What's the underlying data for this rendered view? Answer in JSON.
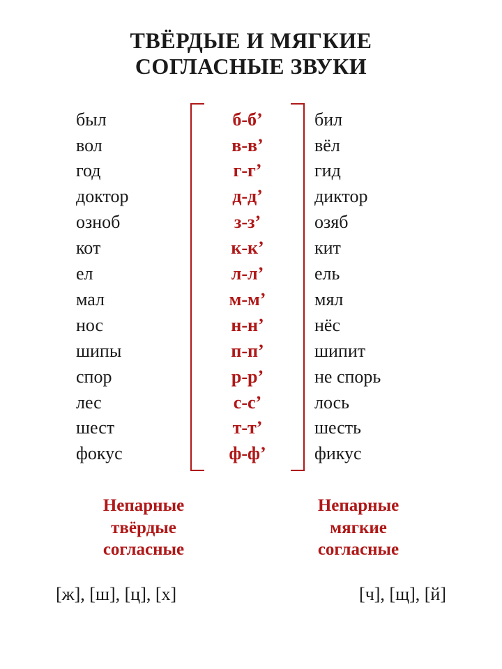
{
  "colors": {
    "accent": "#b01818",
    "text": "#1a1a1a",
    "bracket": "#b01818",
    "background": "#ffffff"
  },
  "title": {
    "line1": "ТВЁРДЫЕ И МЯГКИЕ",
    "line2": "СОГЛАСНЫЕ ЗВУКИ"
  },
  "rows": [
    {
      "left": "был",
      "mid": "б-б’",
      "right": "бил"
    },
    {
      "left": "вол",
      "mid": "в-в’",
      "right": "вёл"
    },
    {
      "left": "год",
      "mid": "г-г’",
      "right": "гид"
    },
    {
      "left": "доктор",
      "mid": "д-д’",
      "right": "диктор"
    },
    {
      "left": "озноб",
      "mid": "з-з’",
      "right": "озяб"
    },
    {
      "left": "кот",
      "mid": "к-к’",
      "right": "кит"
    },
    {
      "left": "ел",
      "mid": "л-л’",
      "right": "ель"
    },
    {
      "left": "мал",
      "mid": "м-м’",
      "right": "мял"
    },
    {
      "left": "нос",
      "mid": "н-н’",
      "right": "нёс"
    },
    {
      "left": "шипы",
      "mid": "п-п’",
      "right": "шипит"
    },
    {
      "left": "спор",
      "mid": "р-р’",
      "right": "не спорь"
    },
    {
      "left": "лес",
      "mid": "с-с’",
      "right": "лось"
    },
    {
      "left": "шест",
      "mid": "т-т’",
      "right": "шесть"
    },
    {
      "left": "фокус",
      "mid": "ф-ф’",
      "right": "фикус"
    }
  ],
  "bottom": {
    "left": {
      "l1": "Непарные",
      "l2": "твёрдые",
      "l3": "согласные"
    },
    "right": {
      "l1": "Непарные",
      "l2": "мягкие",
      "l3": "согласные"
    }
  },
  "sounds": {
    "left": "[ж], [ш], [ц], [х]",
    "right": "[ч], [щ], [й]"
  }
}
